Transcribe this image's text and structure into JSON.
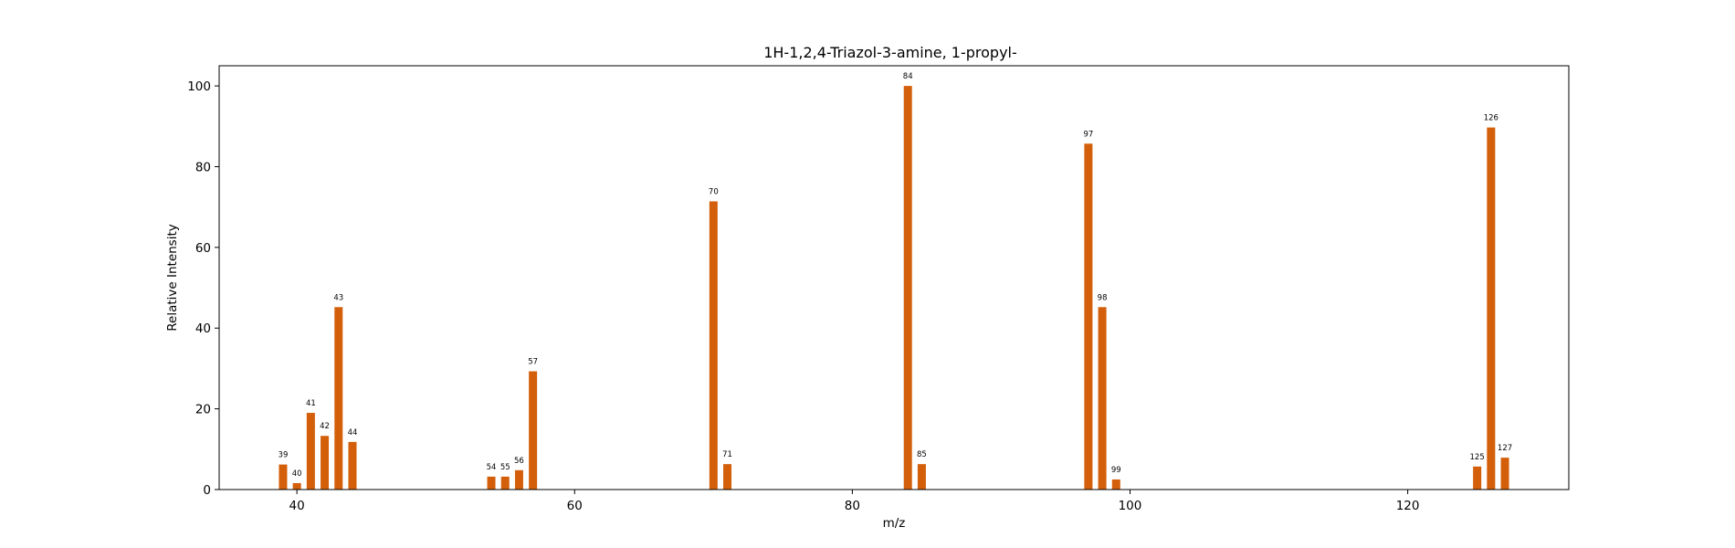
{
  "chart_data": {
    "type": "bar",
    "title": "1H-1,2,4-Triazol-3-amine, 1-propyl-",
    "xlabel": "m/z",
    "ylabel": "Relative Intensity",
    "xlim": [
      34.4,
      131.6
    ],
    "ylim": [
      0,
      105
    ],
    "xticks": [
      40,
      60,
      80,
      100,
      120
    ],
    "yticks": [
      0,
      20,
      40,
      60,
      80,
      100
    ],
    "grid": false,
    "bar_color": "#d45f0a",
    "x": [
      39,
      40,
      41,
      42,
      43,
      44,
      54,
      55,
      56,
      57,
      70,
      71,
      84,
      85,
      97,
      98,
      99,
      125,
      126,
      127
    ],
    "values": [
      6.2,
      1.6,
      19.0,
      13.3,
      45.2,
      11.8,
      3.2,
      3.2,
      4.8,
      29.3,
      71.4,
      6.3,
      100.0,
      6.3,
      85.7,
      45.2,
      2.5,
      5.7,
      89.7,
      7.9
    ],
    "peak_labels": [
      "39",
      "40",
      "41",
      "42",
      "43",
      "44",
      "54",
      "55",
      "56",
      "57",
      "70",
      "71",
      "84",
      "85",
      "97",
      "98",
      "99",
      "125",
      "126",
      "127"
    ]
  }
}
